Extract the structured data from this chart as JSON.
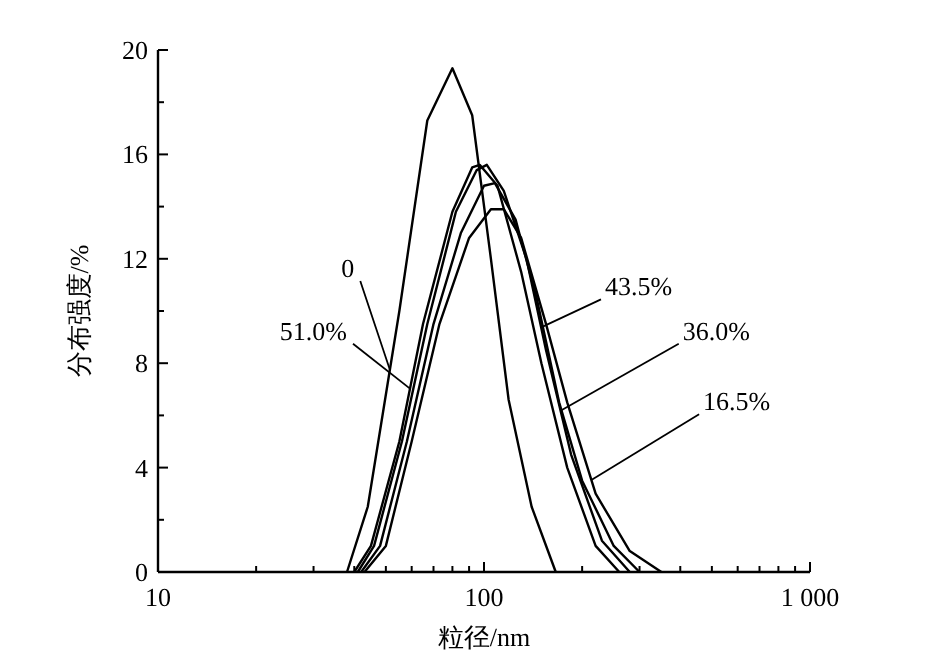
{
  "chart_data": {
    "type": "line",
    "xlabel": "粒径/nm",
    "ylabel": "分布强度/%",
    "log": "x",
    "xlim": [
      10,
      1000
    ],
    "ylim": [
      0,
      20
    ],
    "xticks": [
      10,
      {
        "value": 20,
        "label": null
      },
      {
        "value": 30,
        "label": null
      },
      {
        "value": 40,
        "label": null
      },
      {
        "value": 50,
        "label": null
      },
      {
        "value": 60,
        "label": null
      },
      {
        "value": 70,
        "label": null
      },
      {
        "value": 80,
        "label": null
      },
      {
        "value": 90,
        "label": null
      },
      100,
      {
        "value": 200,
        "label": null
      },
      {
        "value": 300,
        "label": null
      },
      {
        "value": 400,
        "label": null
      },
      {
        "value": 500,
        "label": null
      },
      {
        "value": 600,
        "label": null
      },
      {
        "value": 700,
        "label": null
      },
      {
        "value": 800,
        "label": null
      },
      {
        "value": 900,
        "label": null
      },
      {
        "value": 1000,
        "label": "1 000"
      }
    ],
    "yticks": [
      0,
      {
        "value": 2,
        "label": null
      },
      4,
      {
        "value": 6,
        "label": null
      },
      8,
      {
        "value": 10,
        "label": null
      },
      12,
      {
        "value": 14,
        "label": null
      },
      16,
      {
        "value": 18,
        "label": null
      },
      20
    ],
    "grid": false,
    "marker": "none",
    "line_style": "solid",
    "series": [
      {
        "name": "0",
        "color": "#000000",
        "x": [
          38,
          44,
          55,
          67,
          80,
          92,
          105,
          119,
          140,
          166
        ],
        "values": [
          0,
          2.5,
          10,
          17.3,
          19.3,
          17.5,
          12,
          6.6,
          2.5,
          0
        ]
      },
      {
        "name": "51.0%",
        "color": "#000000",
        "x": [
          40,
          45,
          55,
          65,
          80,
          92,
          97,
          110,
          130,
          150,
          180,
          220,
          260
        ],
        "values": [
          0,
          1,
          5,
          9.5,
          13.8,
          15.5,
          15.6,
          14.8,
          11.5,
          8,
          4,
          1,
          0
        ]
      },
      {
        "name": "43.5%",
        "color": "#000000",
        "x": [
          41,
          46,
          56,
          67,
          82,
          95,
          102,
          115,
          135,
          155,
          185,
          230,
          280
        ],
        "values": [
          0,
          1,
          5,
          9.5,
          13.8,
          15.4,
          15.6,
          14.6,
          12,
          8.5,
          4.5,
          1.2,
          0
        ]
      },
      {
        "name": "36.0%",
        "color": "#000000",
        "x": [
          42,
          48,
          58,
          70,
          85,
          100,
          108,
          125,
          145,
          170,
          200,
          250,
          300
        ],
        "values": [
          0,
          1,
          5,
          9.5,
          13,
          14.8,
          14.9,
          13.5,
          10.5,
          6.5,
          3.5,
          1,
          0
        ]
      },
      {
        "name": "16.5%",
        "color": "#000000",
        "x": [
          43,
          50,
          60,
          73,
          90,
          105,
          115,
          130,
          155,
          180,
          220,
          280,
          350
        ],
        "values": [
          0,
          1,
          5,
          9.5,
          12.8,
          13.9,
          13.9,
          12.8,
          9.5,
          6.5,
          3,
          0.8,
          0
        ]
      }
    ]
  }
}
